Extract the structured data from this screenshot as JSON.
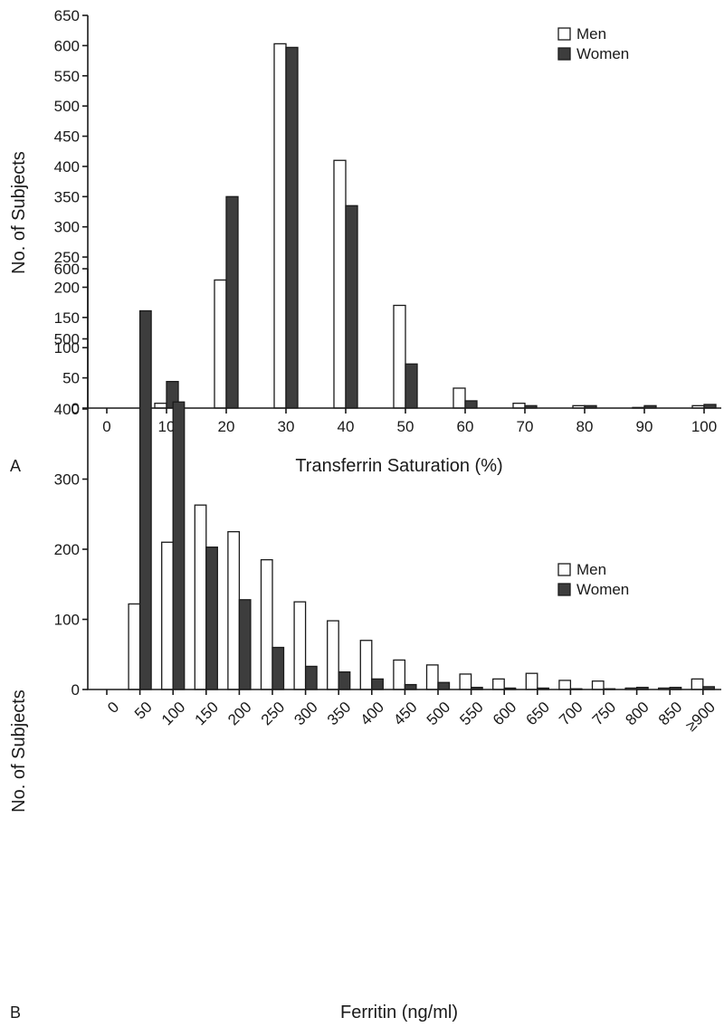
{
  "colors": {
    "men": "#ffffff",
    "women": "#3d3d3d",
    "outline": "#1a1a1a"
  },
  "chart_data": [
    {
      "panel_label": "A",
      "type": "bar",
      "xlabel": "Transferrin Saturation (%)",
      "ylabel": "No. of Subjects",
      "ylim": [
        0,
        650
      ],
      "yticks": [
        "0",
        "50",
        "100",
        "150",
        "200",
        "250",
        "300",
        "350",
        "400",
        "450",
        "500",
        "550",
        "600",
        "650"
      ],
      "categories": [
        "0",
        "10",
        "20",
        "30",
        "40",
        "50",
        "60",
        "70",
        "80",
        "90",
        "100"
      ],
      "legend_position": "top-right",
      "series": [
        {
          "name": "Men",
          "values": [
            0,
            8,
            212,
            603,
            410,
            170,
            33,
            8,
            4,
            1,
            4
          ]
        },
        {
          "name": "Women",
          "values": [
            0,
            44,
            350,
            597,
            335,
            73,
            12,
            4,
            4,
            4,
            6
          ]
        }
      ]
    },
    {
      "panel_label": "B",
      "type": "bar",
      "xlabel": "Ferritin (ng/ml)",
      "ylabel": "No. of Subjects",
      "ylim": [
        0,
        600
      ],
      "yticks": [
        "0",
        "100",
        "200",
        "300",
        "400",
        "500",
        "600"
      ],
      "categories": [
        "0",
        "50",
        "100",
        "150",
        "200",
        "250",
        "300",
        "350",
        "400",
        "450",
        "500",
        "550",
        "600",
        "650",
        "700",
        "750",
        "800",
        "850",
        "≥900"
      ],
      "legend_position": "top-right",
      "series": [
        {
          "name": "Men",
          "values": [
            0,
            122,
            210,
            263,
            225,
            185,
            125,
            98,
            70,
            42,
            35,
            22,
            15,
            23,
            13,
            12,
            2,
            2,
            15
          ]
        },
        {
          "name": "Women",
          "values": [
            0,
            540,
            410,
            203,
            128,
            60,
            33,
            25,
            15,
            7,
            10,
            3,
            2,
            2,
            1,
            1,
            3,
            3,
            4
          ]
        }
      ]
    }
  ]
}
